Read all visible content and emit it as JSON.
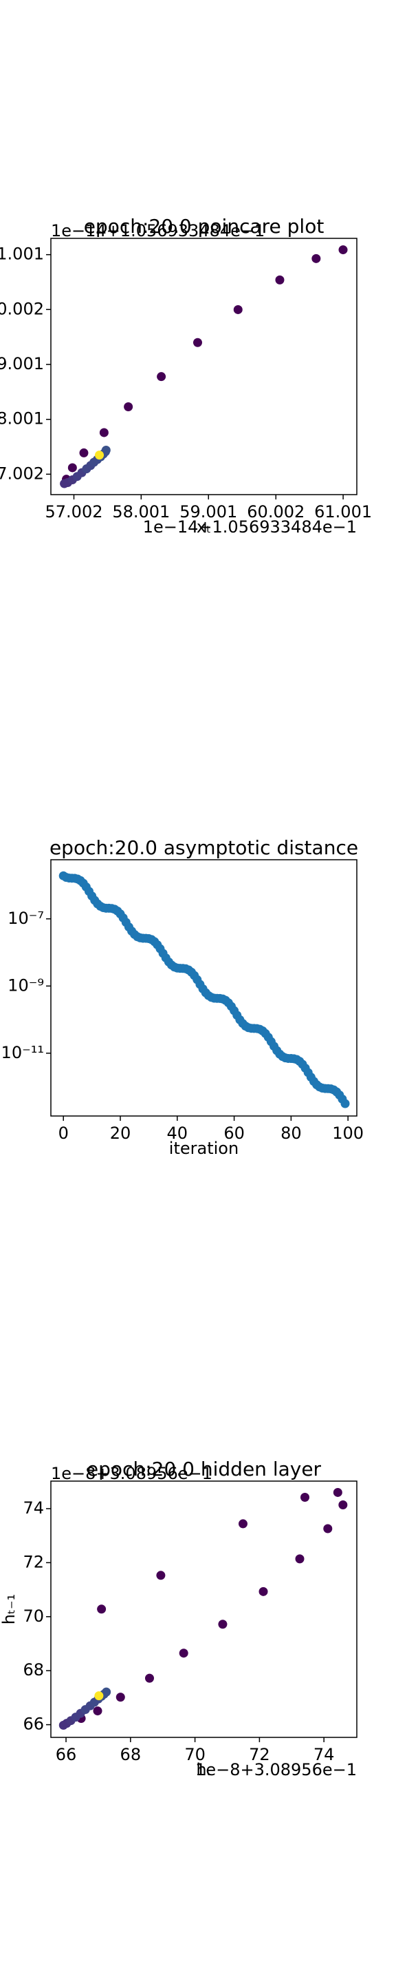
{
  "chart_data": [
    {
      "type": "scatter",
      "title": "epoch:20.0 poincare plot",
      "y_offset": "1e−14+1.056933484e−1",
      "x_offset": "1e−14+1.056933484e−1",
      "xlabel": "xₜ",
      "x": [
        61.0,
        60.6,
        60.06,
        59.44,
        58.84,
        58.3,
        57.81,
        57.45,
        57.15,
        56.98,
        56.89,
        56.86,
        56.91,
        56.98,
        57.05,
        57.12,
        57.19,
        57.25,
        57.3,
        57.35,
        57.4,
        57.44,
        57.47,
        57.48,
        57.38
      ],
      "y": [
        61.09,
        60.93,
        60.54,
        60.0,
        59.4,
        58.78,
        58.23,
        57.76,
        57.39,
        57.12,
        56.91,
        56.83,
        56.85,
        56.9,
        56.96,
        57.03,
        57.1,
        57.16,
        57.22,
        57.27,
        57.32,
        57.37,
        57.41,
        57.44,
        57.35
      ],
      "colors": [
        "#440154",
        "#440154",
        "#440154",
        "#440154",
        "#440154",
        "#440154",
        "#440154",
        "#440154",
        "#440154",
        "#440154",
        "#440154",
        "#46327e",
        "#46327e",
        "#45377f",
        "#433e85",
        "#433e85",
        "#404688",
        "#404688",
        "#3e4a89",
        "#3e4a89",
        "#3b528b",
        "#3b528b",
        "#3b528b",
        "#3b528b",
        "#fde725"
      ],
      "xlim": [
        56.66,
        61.204
      ],
      "ylim": [
        56.63,
        61.298
      ],
      "xticks": [
        57.002,
        58.001,
        59.001,
        60.002,
        61.001
      ],
      "yticks": [
        57.002,
        58.001,
        59.001,
        60.002,
        61.001
      ]
    },
    {
      "type": "scatter",
      "title": "epoch:20.0 asymptotic distance",
      "xlabel": "iteration",
      "color": "#1f77b4",
      "yscale": "log",
      "x": [
        0,
        1,
        2,
        3,
        4,
        5,
        6,
        7,
        8,
        9,
        10,
        11,
        12,
        13,
        14,
        15,
        16,
        17,
        18,
        19,
        20,
        21,
        22,
        23,
        24,
        25,
        26,
        27,
        28,
        29,
        30,
        31,
        32,
        33,
        34,
        35,
        36,
        37,
        38,
        39,
        40,
        41,
        42,
        43,
        44,
        45,
        46,
        47,
        48,
        49,
        50,
        51,
        52,
        53,
        54,
        55,
        56,
        57,
        58,
        59,
        60,
        61,
        62,
        63,
        64,
        65,
        66,
        67,
        68,
        69,
        70,
        71,
        72,
        73,
        74,
        75,
        76,
        77,
        78,
        79,
        80,
        81,
        82,
        83,
        84,
        85,
        86,
        87,
        88,
        89,
        90,
        91,
        92,
        93,
        94,
        95,
        96,
        97,
        98,
        99
      ],
      "y": [
        1.91e-06,
        1.71e-06,
        1.64e-06,
        1.62e-06,
        1.61e-06,
        1.53e-06,
        1.38e-06,
        1.15e-06,
        8.91e-07,
        6.58e-07,
        4.79e-07,
        3.56e-07,
        2.8e-07,
        2.37e-07,
        2.15e-07,
        2.07e-07,
        2.07e-07,
        2.04e-07,
        1.93e-07,
        1.71e-07,
        1.4e-07,
        1.07e-07,
        7.87e-08,
        5.73e-08,
        4.31e-08,
        3.43e-08,
        2.94e-08,
        2.72e-08,
        2.64e-08,
        2.63e-08,
        2.58e-08,
        2.41e-08,
        2.1e-08,
        1.69e-08,
        1.29e-08,
        9.4e-09,
        6.89e-09,
        5.22e-09,
        4.22e-09,
        3.67e-09,
        3.43e-09,
        3.37e-09,
        3.35e-09,
        3.26e-09,
        3.01e-09,
        2.58e-09,
        2.06e-09,
        1.55e-09,
        1.12e-09,
        8.26e-10,
        6.34e-10,
        5.19e-10,
        4.59e-10,
        4.34e-10,
        4.28e-10,
        4.26e-10,
        4.11e-10,
        3.74e-10,
        3.16e-10,
        2.48e-10,
        1.85e-10,
        1.35e-10,
        9.93e-11,
        7.71e-11,
        6.41e-11,
        5.75e-11,
        5.51e-11,
        5.46e-11,
        5.41e-11,
        5.16e-11,
        4.63e-11,
        3.85e-11,
        2.99e-11,
        2.21e-11,
        1.61e-11,
        1.2e-11,
        9.42e-12,
        7.96e-12,
        7.24e-12,
        6.98e-12,
        6.95e-12,
        6.85e-12,
        6.47e-12,
        5.73e-12,
        4.69e-12,
        3.6e-12,
        2.65e-12,
        1.93e-12,
        1.45e-12,
        1.15e-12,
        9.89e-13,
        9.12e-13,
        8.87e-13,
        8.83e-13,
        8.67e-13,
        8.09e-13,
        7.06e-13,
        5.7e-13,
        4.32e-13,
        3.16e-13
      ],
      "xlim": [
        -4.4,
        103.1
      ],
      "ylim": [
        1.35e-13,
        5.75e-06
      ],
      "xticks": [
        0,
        20,
        40,
        60,
        80,
        100
      ],
      "yticks": [
        {
          "value": 1e-07,
          "label": "10⁻⁷"
        },
        {
          "value": 1e-09,
          "label": "10⁻⁹"
        },
        {
          "value": 1e-11,
          "label": "10⁻¹¹"
        }
      ]
    },
    {
      "type": "scatter",
      "title": "epoch:20.0 hidden layer",
      "y_offset": "1e−8+3.08956e−1",
      "x_offset": "1e−8+3.08956e−1",
      "xlabel": "hₜ",
      "ylabel": "hₜ₋₁",
      "x": [
        74.43,
        74.59,
        73.41,
        74.12,
        71.49,
        73.25,
        72.12,
        70.86,
        69.65,
        68.59,
        67.69,
        68.94,
        67.1,
        66.98,
        66.47,
        65.92,
        66.02,
        66.15,
        66.3,
        66.45,
        66.6,
        66.75,
        66.88,
        67.0,
        67.1,
        67.18,
        67.25,
        67.02
      ],
      "y": [
        74.6,
        74.14,
        74.42,
        73.26,
        73.44,
        72.14,
        70.93,
        69.72,
        68.65,
        67.72,
        67.02,
        71.53,
        70.28,
        66.51,
        66.23,
        65.98,
        66.05,
        66.15,
        66.28,
        66.42,
        66.56,
        66.7,
        66.83,
        66.95,
        67.05,
        67.13,
        67.21,
        67.07
      ],
      "colors": [
        "#440154",
        "#440154",
        "#440154",
        "#440154",
        "#440154",
        "#440154",
        "#440154",
        "#440154",
        "#440154",
        "#440154",
        "#440154",
        "#440154",
        "#440154",
        "#440154",
        "#440154",
        "#46327e",
        "#46327e",
        "#45377f",
        "#433e85",
        "#433e85",
        "#404688",
        "#404688",
        "#3e4a89",
        "#3e4a89",
        "#3b528b",
        "#3b528b",
        "#3b528b",
        "#fde725"
      ],
      "xlim": [
        65.53,
        75.02
      ],
      "ylim": [
        65.53,
        75.02
      ],
      "xticks": [
        66,
        68,
        70,
        72,
        74
      ],
      "yticks": [
        66,
        68,
        70,
        72,
        74
      ]
    }
  ]
}
